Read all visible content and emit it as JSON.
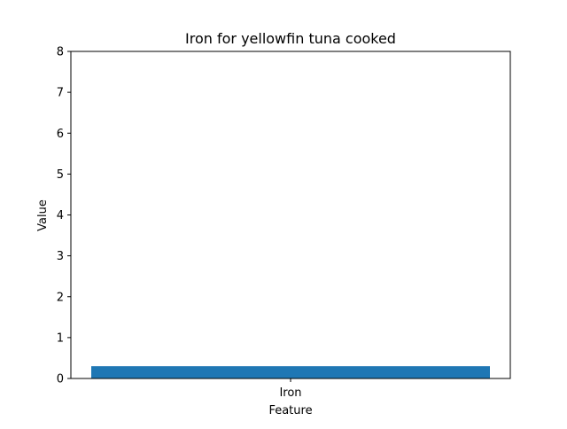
{
  "chart_data": {
    "type": "bar",
    "title": "Iron for yellowfin tuna cooked",
    "xlabel": "Feature",
    "ylabel": "Value",
    "categories": [
      "Iron"
    ],
    "values": [
      0.3
    ],
    "ylim": [
      0,
      8
    ],
    "yticks": [
      0,
      1,
      2,
      3,
      4,
      5,
      6,
      7,
      8
    ],
    "grid": false,
    "legend": false,
    "bar_color": "#1f77b4"
  }
}
